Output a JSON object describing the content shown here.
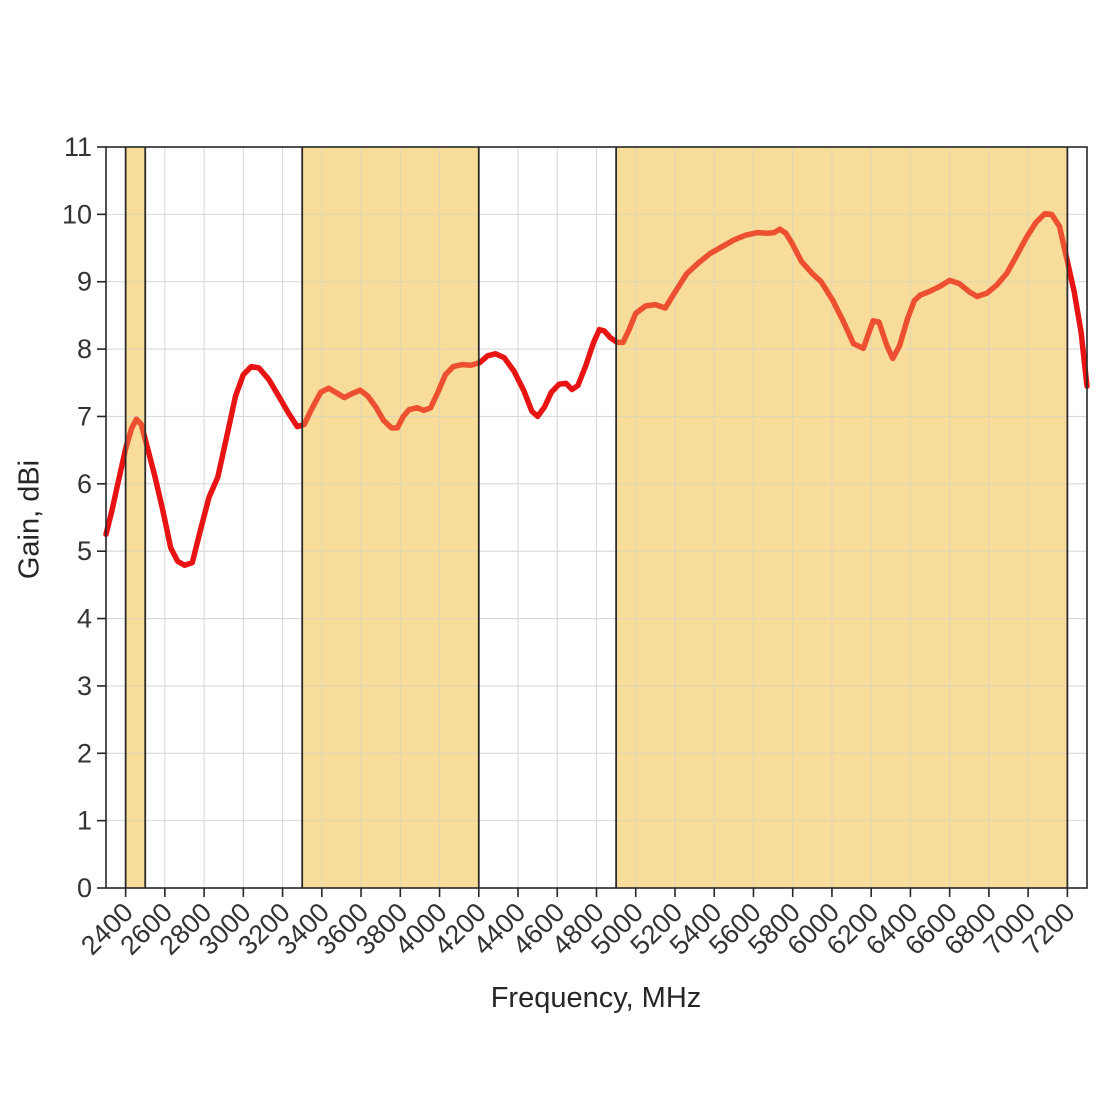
{
  "figure": {
    "xlabel": "Frequency, MHz",
    "ylabel": "Gain, dBi"
  },
  "chart_data": {
    "type": "line",
    "title": "",
    "xlabel": "Frequency, MHz",
    "ylabel": "Gain, dBi",
    "xlim": [
      2300,
      7300
    ],
    "ylim": [
      0,
      11
    ],
    "x_ticks": [
      2400,
      2600,
      2800,
      3000,
      3200,
      3400,
      3600,
      3800,
      4000,
      4200,
      4400,
      4600,
      4800,
      5000,
      5200,
      5400,
      5600,
      5800,
      6000,
      6200,
      6400,
      6600,
      6800,
      7000,
      7200
    ],
    "y_ticks": [
      0,
      1,
      2,
      3,
      4,
      5,
      6,
      7,
      8,
      9,
      10,
      11
    ],
    "grid": true,
    "legend": "none",
    "highlight_bands_mhz": [
      {
        "start": 2400,
        "end": 2500
      },
      {
        "start": 3300,
        "end": 4200
      },
      {
        "start": 4900,
        "end": 7200
      }
    ],
    "colors": {
      "line": "#e81414",
      "band_fill": "#f9e2ad",
      "band_overlay": "#f5d070",
      "band_border": "#2b2b2b",
      "grid": "#d9d9d9",
      "axis": "#262626",
      "tick_label": "#333333"
    },
    "series": [
      {
        "name": "Gain",
        "points": [
          [
            2300,
            5.25
          ],
          [
            2330,
            5.6
          ],
          [
            2360,
            6.0
          ],
          [
            2400,
            6.52
          ],
          [
            2430,
            6.82
          ],
          [
            2455,
            6.96
          ],
          [
            2480,
            6.88
          ],
          [
            2510,
            6.55
          ],
          [
            2550,
            6.1
          ],
          [
            2590,
            5.6
          ],
          [
            2630,
            5.05
          ],
          [
            2665,
            4.85
          ],
          [
            2700,
            4.79
          ],
          [
            2740,
            4.83
          ],
          [
            2780,
            5.3
          ],
          [
            2825,
            5.8
          ],
          [
            2870,
            6.1
          ],
          [
            2915,
            6.7
          ],
          [
            2960,
            7.3
          ],
          [
            3000,
            7.62
          ],
          [
            3040,
            7.74
          ],
          [
            3080,
            7.72
          ],
          [
            3130,
            7.55
          ],
          [
            3180,
            7.3
          ],
          [
            3230,
            7.05
          ],
          [
            3275,
            6.85
          ],
          [
            3310,
            6.88
          ],
          [
            3350,
            7.12
          ],
          [
            3395,
            7.36
          ],
          [
            3435,
            7.42
          ],
          [
            3475,
            7.35
          ],
          [
            3515,
            7.28
          ],
          [
            3555,
            7.34
          ],
          [
            3595,
            7.39
          ],
          [
            3635,
            7.3
          ],
          [
            3675,
            7.14
          ],
          [
            3715,
            6.94
          ],
          [
            3755,
            6.83
          ],
          [
            3785,
            6.83
          ],
          [
            3815,
            7.0
          ],
          [
            3845,
            7.1
          ],
          [
            3885,
            7.13
          ],
          [
            3920,
            7.09
          ],
          [
            3955,
            7.13
          ],
          [
            3990,
            7.35
          ],
          [
            4030,
            7.62
          ],
          [
            4070,
            7.74
          ],
          [
            4115,
            7.77
          ],
          [
            4160,
            7.76
          ],
          [
            4205,
            7.8
          ],
          [
            4245,
            7.9
          ],
          [
            4285,
            7.93
          ],
          [
            4330,
            7.87
          ],
          [
            4380,
            7.67
          ],
          [
            4430,
            7.38
          ],
          [
            4470,
            7.08
          ],
          [
            4500,
            7.0
          ],
          [
            4535,
            7.14
          ],
          [
            4570,
            7.36
          ],
          [
            4610,
            7.48
          ],
          [
            4645,
            7.49
          ],
          [
            4675,
            7.4
          ],
          [
            4705,
            7.46
          ],
          [
            4745,
            7.75
          ],
          [
            4785,
            8.1
          ],
          [
            4815,
            8.29
          ],
          [
            4840,
            8.27
          ],
          [
            4870,
            8.17
          ],
          [
            4905,
            8.1
          ],
          [
            4935,
            8.1
          ],
          [
            4965,
            8.28
          ],
          [
            5000,
            8.53
          ],
          [
            5050,
            8.64
          ],
          [
            5100,
            8.66
          ],
          [
            5150,
            8.61
          ],
          [
            5205,
            8.87
          ],
          [
            5260,
            9.12
          ],
          [
            5320,
            9.28
          ],
          [
            5380,
            9.42
          ],
          [
            5440,
            9.52
          ],
          [
            5500,
            9.62
          ],
          [
            5560,
            9.69
          ],
          [
            5620,
            9.73
          ],
          [
            5670,
            9.72
          ],
          [
            5705,
            9.73
          ],
          [
            5735,
            9.78
          ],
          [
            5765,
            9.72
          ],
          [
            5795,
            9.58
          ],
          [
            5845,
            9.3
          ],
          [
            5900,
            9.12
          ],
          [
            5945,
            9.0
          ],
          [
            6005,
            8.72
          ],
          [
            6060,
            8.4
          ],
          [
            6110,
            8.08
          ],
          [
            6160,
            8.01
          ],
          [
            6210,
            8.42
          ],
          [
            6240,
            8.4
          ],
          [
            6280,
            8.05
          ],
          [
            6310,
            7.86
          ],
          [
            6345,
            8.05
          ],
          [
            6385,
            8.45
          ],
          [
            6420,
            8.72
          ],
          [
            6450,
            8.8
          ],
          [
            6500,
            8.86
          ],
          [
            6550,
            8.93
          ],
          [
            6600,
            9.02
          ],
          [
            6650,
            8.97
          ],
          [
            6700,
            8.85
          ],
          [
            6740,
            8.78
          ],
          [
            6790,
            8.83
          ],
          [
            6840,
            8.95
          ],
          [
            6890,
            9.12
          ],
          [
            6940,
            9.38
          ],
          [
            6990,
            9.65
          ],
          [
            7040,
            9.88
          ],
          [
            7085,
            10.01
          ],
          [
            7120,
            10.0
          ],
          [
            7160,
            9.82
          ],
          [
            7200,
            9.3
          ],
          [
            7235,
            8.85
          ],
          [
            7270,
            8.25
          ],
          [
            7300,
            7.45
          ]
        ]
      }
    ]
  }
}
